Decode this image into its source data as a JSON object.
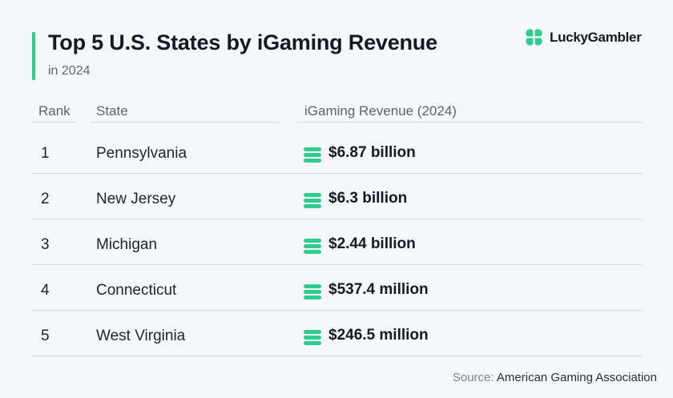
{
  "header": {
    "title": "Top 5 U.S. States by iGaming Revenue",
    "subtitle": "in 2024",
    "brand_name": "LuckyGambler",
    "brand_icon": "clover-icon",
    "accent_color": "#2ecc8f"
  },
  "chart_data": {
    "type": "table",
    "columns": [
      "Rank",
      "State",
      "iGaming Revenue (2024)"
    ],
    "rows": [
      {
        "rank": "1",
        "state": "Pennsylvania",
        "revenue": "$6.87 billion"
      },
      {
        "rank": "2",
        "state": "New Jersey",
        "revenue": "$6.3 billion"
      },
      {
        "rank": "3",
        "state": "Michigan",
        "revenue": "$2.44 billion"
      },
      {
        "rank": "4",
        "state": "Connecticut",
        "revenue": "$537.4 million"
      },
      {
        "rank": "5",
        "state": "West Virginia",
        "revenue": "$246.5 million"
      }
    ],
    "value_icon": "coin-stack-icon"
  },
  "footer": {
    "source_label": "Source:",
    "source_value": "American Gaming Association"
  }
}
